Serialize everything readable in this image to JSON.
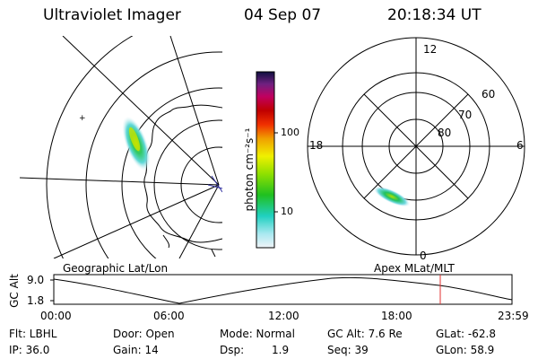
{
  "header": {
    "title": "Ultraviolet Imager",
    "date": "04 Sep 07",
    "time": "20:18:34 UT"
  },
  "colorbar": {
    "unit_label": "photon cm⁻²s⁻¹",
    "ticks": [
      "100",
      "10"
    ]
  },
  "polar_plot": {
    "mlt_labels": [
      "12",
      "18",
      "6",
      "0"
    ],
    "lat_labels": [
      "60",
      "70",
      "80"
    ]
  },
  "map_labels": {
    "geographic": "Geographic Lat/Lon",
    "apex": "Apex MLat/MLT"
  },
  "altitude_plot": {
    "axis_label": "GC Alt",
    "y_ticks": [
      "9.0",
      "1.8"
    ],
    "x_ticks": [
      "00:00",
      "06:00",
      "12:00",
      "18:00",
      "23:59"
    ],
    "marker_color": "#e03030"
  },
  "info": {
    "filter": "Flt: LBHL",
    "ip": "IP: 36.0",
    "door": "Door: Open",
    "gain": "Gain: 14",
    "mode": "Mode: Normal",
    "dsp_label": "Dsp:",
    "dsp_value": "1.9",
    "gc_alt": "GC Alt: 7.6 Re",
    "seq": "Seq: 39",
    "glat": "GLat: -62.8",
    "glon": "GLon: 58.9"
  }
}
